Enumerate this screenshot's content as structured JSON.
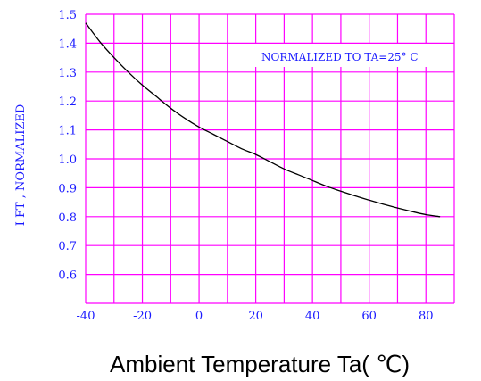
{
  "chart_data": {
    "type": "line",
    "ylabel": "I FT , NORMALIZED",
    "xlabel": "Ambient Temperature Ta(  ℃)",
    "annotation": "NORMALIZED TO TA=25° C",
    "xlim": [
      -40,
      90
    ],
    "ylim": [
      0.5,
      1.5
    ],
    "x_ticks": [
      "-40",
      "-20",
      "0",
      "20",
      "40",
      "60",
      "80"
    ],
    "y_ticks": [
      "1.5",
      "1.4",
      "1.3",
      "1.2",
      "1.1",
      "1.0",
      "0.9",
      "0.8",
      "0.7",
      "0.6"
    ],
    "grid": true,
    "series": [
      {
        "x": [
          -40,
          -35,
          -30,
          -25,
          -20,
          -15,
          -10,
          -5,
          0,
          5,
          10,
          15,
          20,
          25,
          30,
          35,
          40,
          45,
          50,
          55,
          60,
          65,
          70,
          75,
          80,
          85
        ],
        "y": [
          1.47,
          1.405,
          1.35,
          1.3,
          1.255,
          1.215,
          1.175,
          1.14,
          1.11,
          1.085,
          1.06,
          1.035,
          1.015,
          0.99,
          0.965,
          0.945,
          0.925,
          0.905,
          0.888,
          0.872,
          0.857,
          0.843,
          0.83,
          0.818,
          0.807,
          0.8
        ]
      }
    ]
  },
  "colors": {
    "grid": "#ff00ff",
    "labels": "#1a1aff",
    "curve": "#000000",
    "xlabel": "#000000"
  }
}
